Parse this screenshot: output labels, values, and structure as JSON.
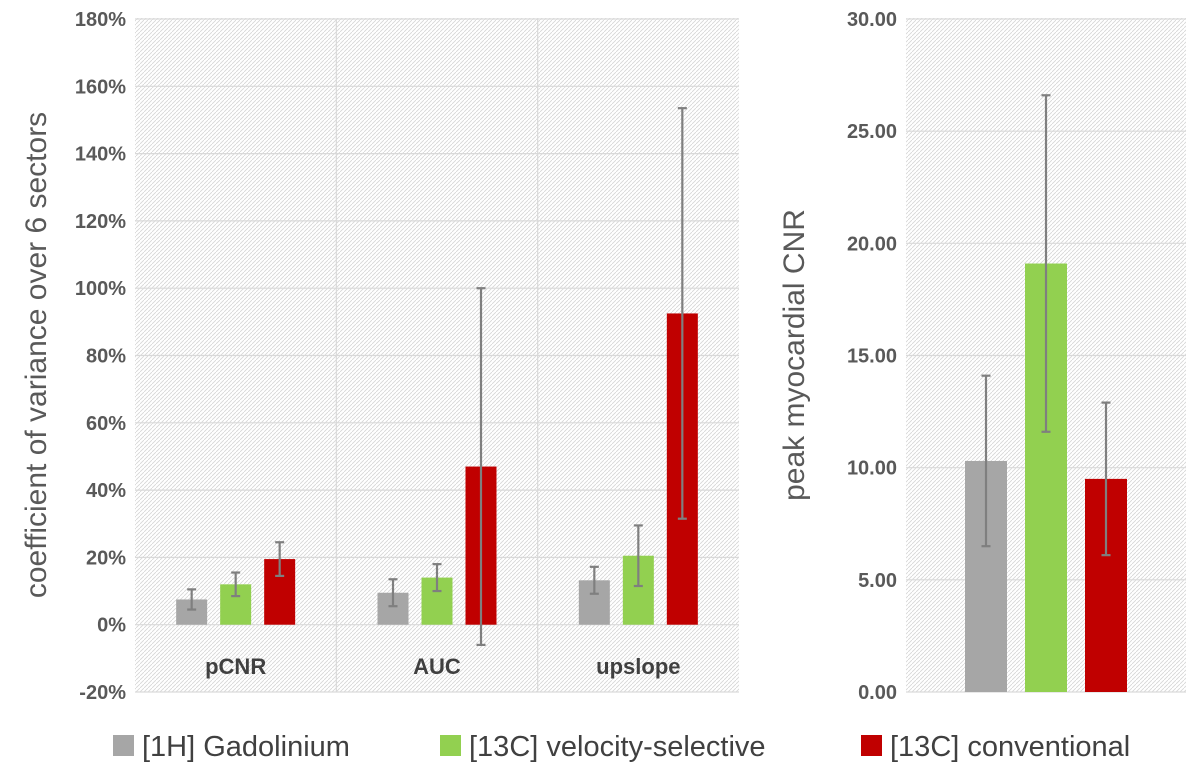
{
  "legend": [
    {
      "label": "[1H] Gadolinium",
      "color": "#a6a6a6"
    },
    {
      "label": "[13C] velocity-selective",
      "color": "#92d050"
    },
    {
      "label": "[13C] conventional",
      "color": "#c00000"
    }
  ],
  "chart_data": [
    {
      "type": "bar",
      "ylabel": "coefficient of variance over 6 sectors",
      "ylim": [
        -20,
        180
      ],
      "yticks": [
        "-20%",
        "0%",
        "20%",
        "40%",
        "60%",
        "80%",
        "100%",
        "120%",
        "140%",
        "160%",
        "180%"
      ],
      "categories": [
        "pCNR",
        "AUC",
        "upslope"
      ],
      "series": [
        {
          "name": "[1H] Gadolinium",
          "color": "#a6a6a6",
          "values": [
            7.5,
            9.5,
            13.2
          ],
          "error": [
            3.0,
            4.0,
            4.0
          ]
        },
        {
          "name": "[13C] velocity-selective",
          "color": "#92d050",
          "values": [
            12.0,
            14.0,
            20.5
          ],
          "error": [
            3.5,
            4.0,
            9.0
          ]
        },
        {
          "name": "[13C] conventional",
          "color": "#c00000",
          "values": [
            19.5,
            47.0,
            92.5
          ],
          "error": [
            5.0,
            53.0,
            61.0
          ]
        }
      ]
    },
    {
      "type": "bar",
      "ylabel": "peak myocardial CNR",
      "ylim": [
        0,
        30
      ],
      "yticks": [
        "0.00",
        "5.00",
        "10.00",
        "15.00",
        "20.00",
        "25.00",
        "30.00"
      ],
      "categories": [
        ""
      ],
      "series": [
        {
          "name": "[1H] Gadolinium",
          "color": "#a6a6a6",
          "values": [
            10.3
          ],
          "error": [
            3.8
          ]
        },
        {
          "name": "[13C] velocity-selective",
          "color": "#92d050",
          "values": [
            19.1
          ],
          "error": [
            7.5
          ]
        },
        {
          "name": "[13C] conventional",
          "color": "#c00000",
          "values": [
            9.5
          ],
          "error": [
            3.4
          ]
        }
      ]
    }
  ]
}
